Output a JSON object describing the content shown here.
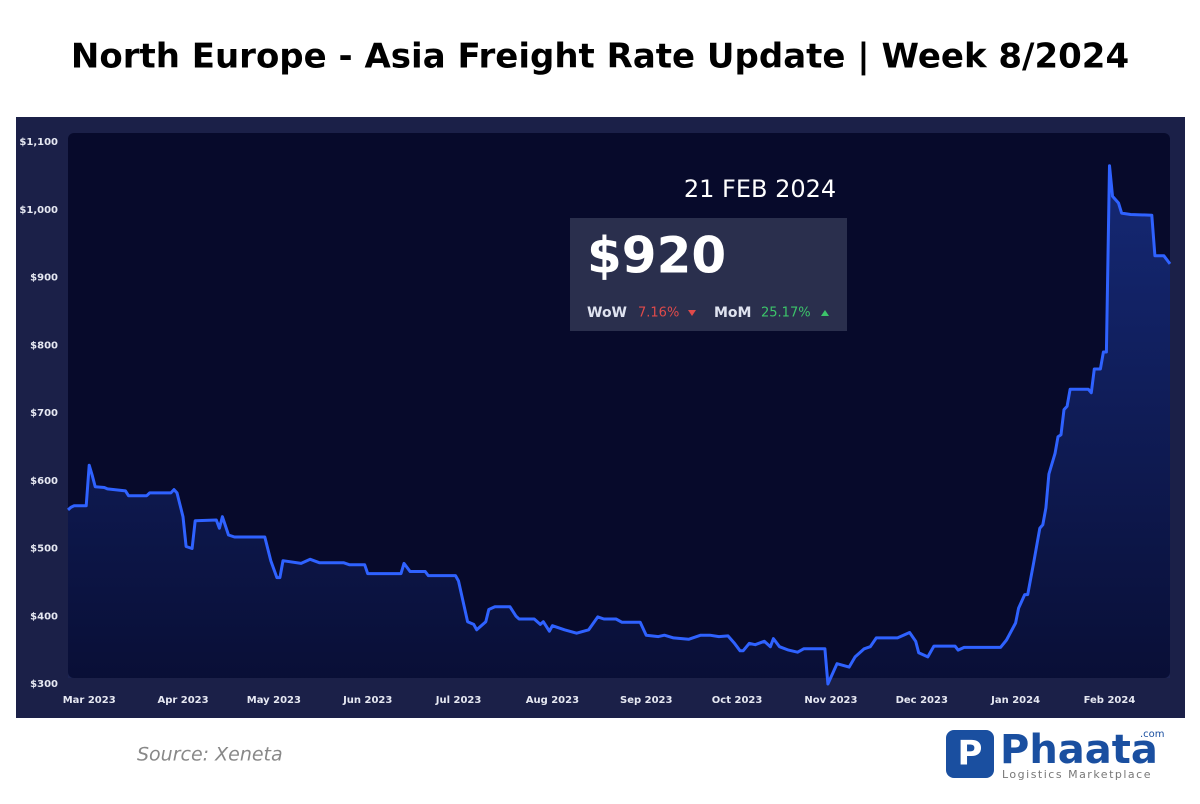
{
  "chart_data": {
    "type": "line",
    "title": "North Europe - Asia Freight Rate Update | Week 8/2024",
    "source": "Source: Xeneta",
    "highlight": {
      "date": "21 FEB 2024",
      "price": "$920",
      "wow_label": "WoW",
      "wow_value": "7.16%",
      "mom_label": "MoM",
      "mom_value": "25.17%"
    },
    "logo": {
      "name": "Phaata",
      "suffix": ".com",
      "tagline": "Logistics Marketplace"
    },
    "xlim": [
      0,
      364
    ],
    "xticks": [
      {
        "value": 7,
        "label": "Mar 2023"
      },
      {
        "value": 38,
        "label": "Apr 2023"
      },
      {
        "value": 68,
        "label": "May 2023"
      },
      {
        "value": 99,
        "label": "Jun 2023"
      },
      {
        "value": 129,
        "label": "Jul 2023"
      },
      {
        "value": 160,
        "label": "Aug 2023"
      },
      {
        "value": 191,
        "label": "Sep 2023"
      },
      {
        "value": 221,
        "label": "Oct 2023"
      },
      {
        "value": 252,
        "label": "Nov 2023"
      },
      {
        "value": 282,
        "label": "Dec 2023"
      },
      {
        "value": 313,
        "label": "Jan 2024"
      },
      {
        "value": 344,
        "label": "Feb 2024"
      }
    ],
    "ylim": [
      300,
      1100
    ],
    "yticks": [
      {
        "value": 300,
        "label": "$300"
      },
      {
        "value": 400,
        "label": "$400"
      },
      {
        "value": 500,
        "label": "$500"
      },
      {
        "value": 600,
        "label": "$600"
      },
      {
        "value": 700,
        "label": "$700"
      },
      {
        "value": 800,
        "label": "$800"
      },
      {
        "value": 900,
        "label": "$900"
      },
      {
        "value": 1000,
        "label": "$1,000"
      },
      {
        "value": 1100,
        "label": "$1,100"
      }
    ],
    "grid": false,
    "color": "#2f62ff",
    "x": [
      0,
      1,
      2,
      6,
      7,
      8,
      9,
      12,
      13,
      19,
      20,
      26,
      27,
      34,
      35,
      36,
      38,
      39,
      41,
      42,
      49,
      50,
      51,
      53,
      55,
      65,
      67,
      69,
      70,
      71,
      77,
      80,
      83,
      91,
      93,
      98,
      99,
      110,
      111,
      113,
      118,
      119,
      128,
      129,
      132,
      134,
      135,
      138,
      139,
      141,
      146,
      148,
      149,
      154,
      156,
      157,
      159,
      160,
      164,
      168,
      172,
      175,
      177,
      181,
      183,
      189,
      191,
      195,
      197,
      200,
      205,
      209,
      212,
      215,
      218,
      220,
      222,
      223,
      225,
      227,
      230,
      232,
      233,
      235,
      238,
      241,
      243,
      250,
      251,
      254,
      258,
      260,
      263,
      265,
      267,
      274,
      278,
      280,
      281,
      284,
      286,
      293,
      294,
      296,
      308,
      310,
      313,
      314,
      316,
      317,
      319,
      321,
      322,
      323,
      324,
      326,
      327,
      328,
      329,
      330,
      331,
      337,
      338,
      339,
      341,
      342,
      343,
      344,
      345,
      347,
      348,
      351,
      358,
      359,
      362,
      364
    ],
    "values": [
      557,
      561,
      563,
      563,
      623,
      608,
      591,
      590,
      588,
      585,
      578,
      578,
      582,
      582,
      587,
      582,
      547,
      503,
      500,
      541,
      542,
      530,
      547,
      520,
      517,
      517,
      482,
      457,
      457,
      482,
      478,
      484,
      479,
      479,
      476,
      476,
      463,
      463,
      478,
      466,
      466,
      460,
      460,
      452,
      392,
      388,
      380,
      392,
      410,
      414,
      414,
      400,
      396,
      396,
      388,
      392,
      378,
      386,
      380,
      375,
      380,
      399,
      396,
      396,
      391,
      391,
      372,
      370,
      372,
      368,
      366,
      372,
      372,
      370,
      371,
      361,
      349,
      349,
      360,
      358,
      363,
      355,
      367,
      355,
      350,
      347,
      352,
      352,
      300,
      330,
      325,
      340,
      352,
      355,
      368,
      368,
      376,
      363,
      346,
      340,
      356,
      356,
      350,
      354,
      354,
      365,
      390,
      412,
      432,
      432,
      480,
      530,
      535,
      560,
      610,
      640,
      665,
      668,
      705,
      710,
      735,
      735,
      730,
      765,
      765,
      790,
      790,
      1065,
      1020,
      1010,
      995,
      993,
      992,
      932,
      932,
      920
    ]
  }
}
